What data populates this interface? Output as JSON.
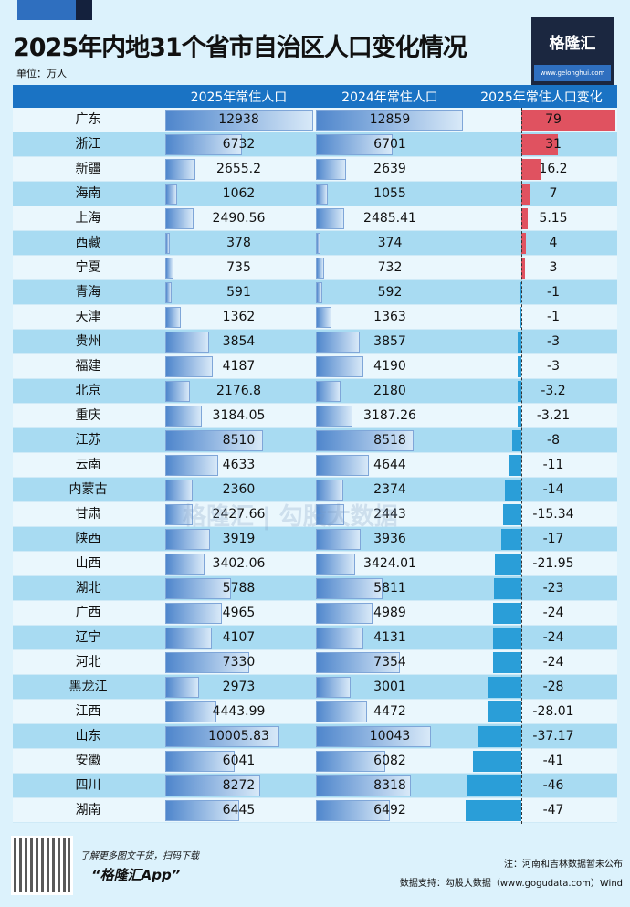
{
  "title": "2025年内地31个省市自治区人口变化情况",
  "unit": "单位：万人",
  "logo": {
    "name": "格隆汇",
    "url": "www.gelonghui.com"
  },
  "watermark": "格隆汇 | 勾股大数据",
  "colors": {
    "header": "#1a73c4",
    "positive": "#e05260",
    "negative": "#2a9ed8"
  },
  "chart_data": {
    "type": "table",
    "columns": [
      "",
      "2025年常住人口",
      "2024年常住人口",
      "2025年常住人口变化"
    ],
    "rows": [
      [
        "广东",
        12938,
        12859,
        79
      ],
      [
        "浙江",
        6732,
        6701,
        31
      ],
      [
        "新疆",
        2655.2,
        2639,
        16.2
      ],
      [
        "海南",
        1062,
        1055,
        7
      ],
      [
        "上海",
        2490.56,
        2485.41,
        5.15
      ],
      [
        "西藏",
        378,
        374,
        4
      ],
      [
        "宁夏",
        735,
        732,
        3
      ],
      [
        "青海",
        591,
        592,
        -1
      ],
      [
        "天津",
        1362,
        1363,
        -1
      ],
      [
        "贵州",
        3854,
        3857,
        -3
      ],
      [
        "福建",
        4187,
        4190,
        -3
      ],
      [
        "北京",
        2176.8,
        2180,
        -3.2
      ],
      [
        "重庆",
        3184.05,
        3187.26,
        -3.21
      ],
      [
        "江苏",
        8510,
        8518,
        -8
      ],
      [
        "云南",
        4633,
        4644,
        -11
      ],
      [
        "内蒙古",
        2360,
        2374,
        -14
      ],
      [
        "甘肃",
        2427.66,
        2443,
        -15.34
      ],
      [
        "陕西",
        3919,
        3936,
        -17
      ],
      [
        "山西",
        3402.06,
        3424.01,
        -21.95
      ],
      [
        "湖北",
        5788,
        5811,
        -23
      ],
      [
        "广西",
        4965,
        4989,
        -24
      ],
      [
        "辽宁",
        4107,
        4131,
        -24
      ],
      [
        "河北",
        7330,
        7354,
        -24
      ],
      [
        "黑龙江",
        2973,
        3001,
        -28
      ],
      [
        "江西",
        4443.99,
        4472,
        -28.01
      ],
      [
        "山东",
        10005.83,
        10043,
        -37.17
      ],
      [
        "安徽",
        6041,
        6082,
        -41
      ],
      [
        "四川",
        8272,
        8318,
        -46
      ],
      [
        "湖南",
        6445,
        6492,
        -47
      ]
    ]
  },
  "footer": {
    "tagline": "了解更多图文干货，扫码下载",
    "app": "“格隆汇App”",
    "note": "注：河南和吉林数据暂未公布",
    "source": "数据支持：勾股大数据（www.gogudata.com）Wind"
  }
}
